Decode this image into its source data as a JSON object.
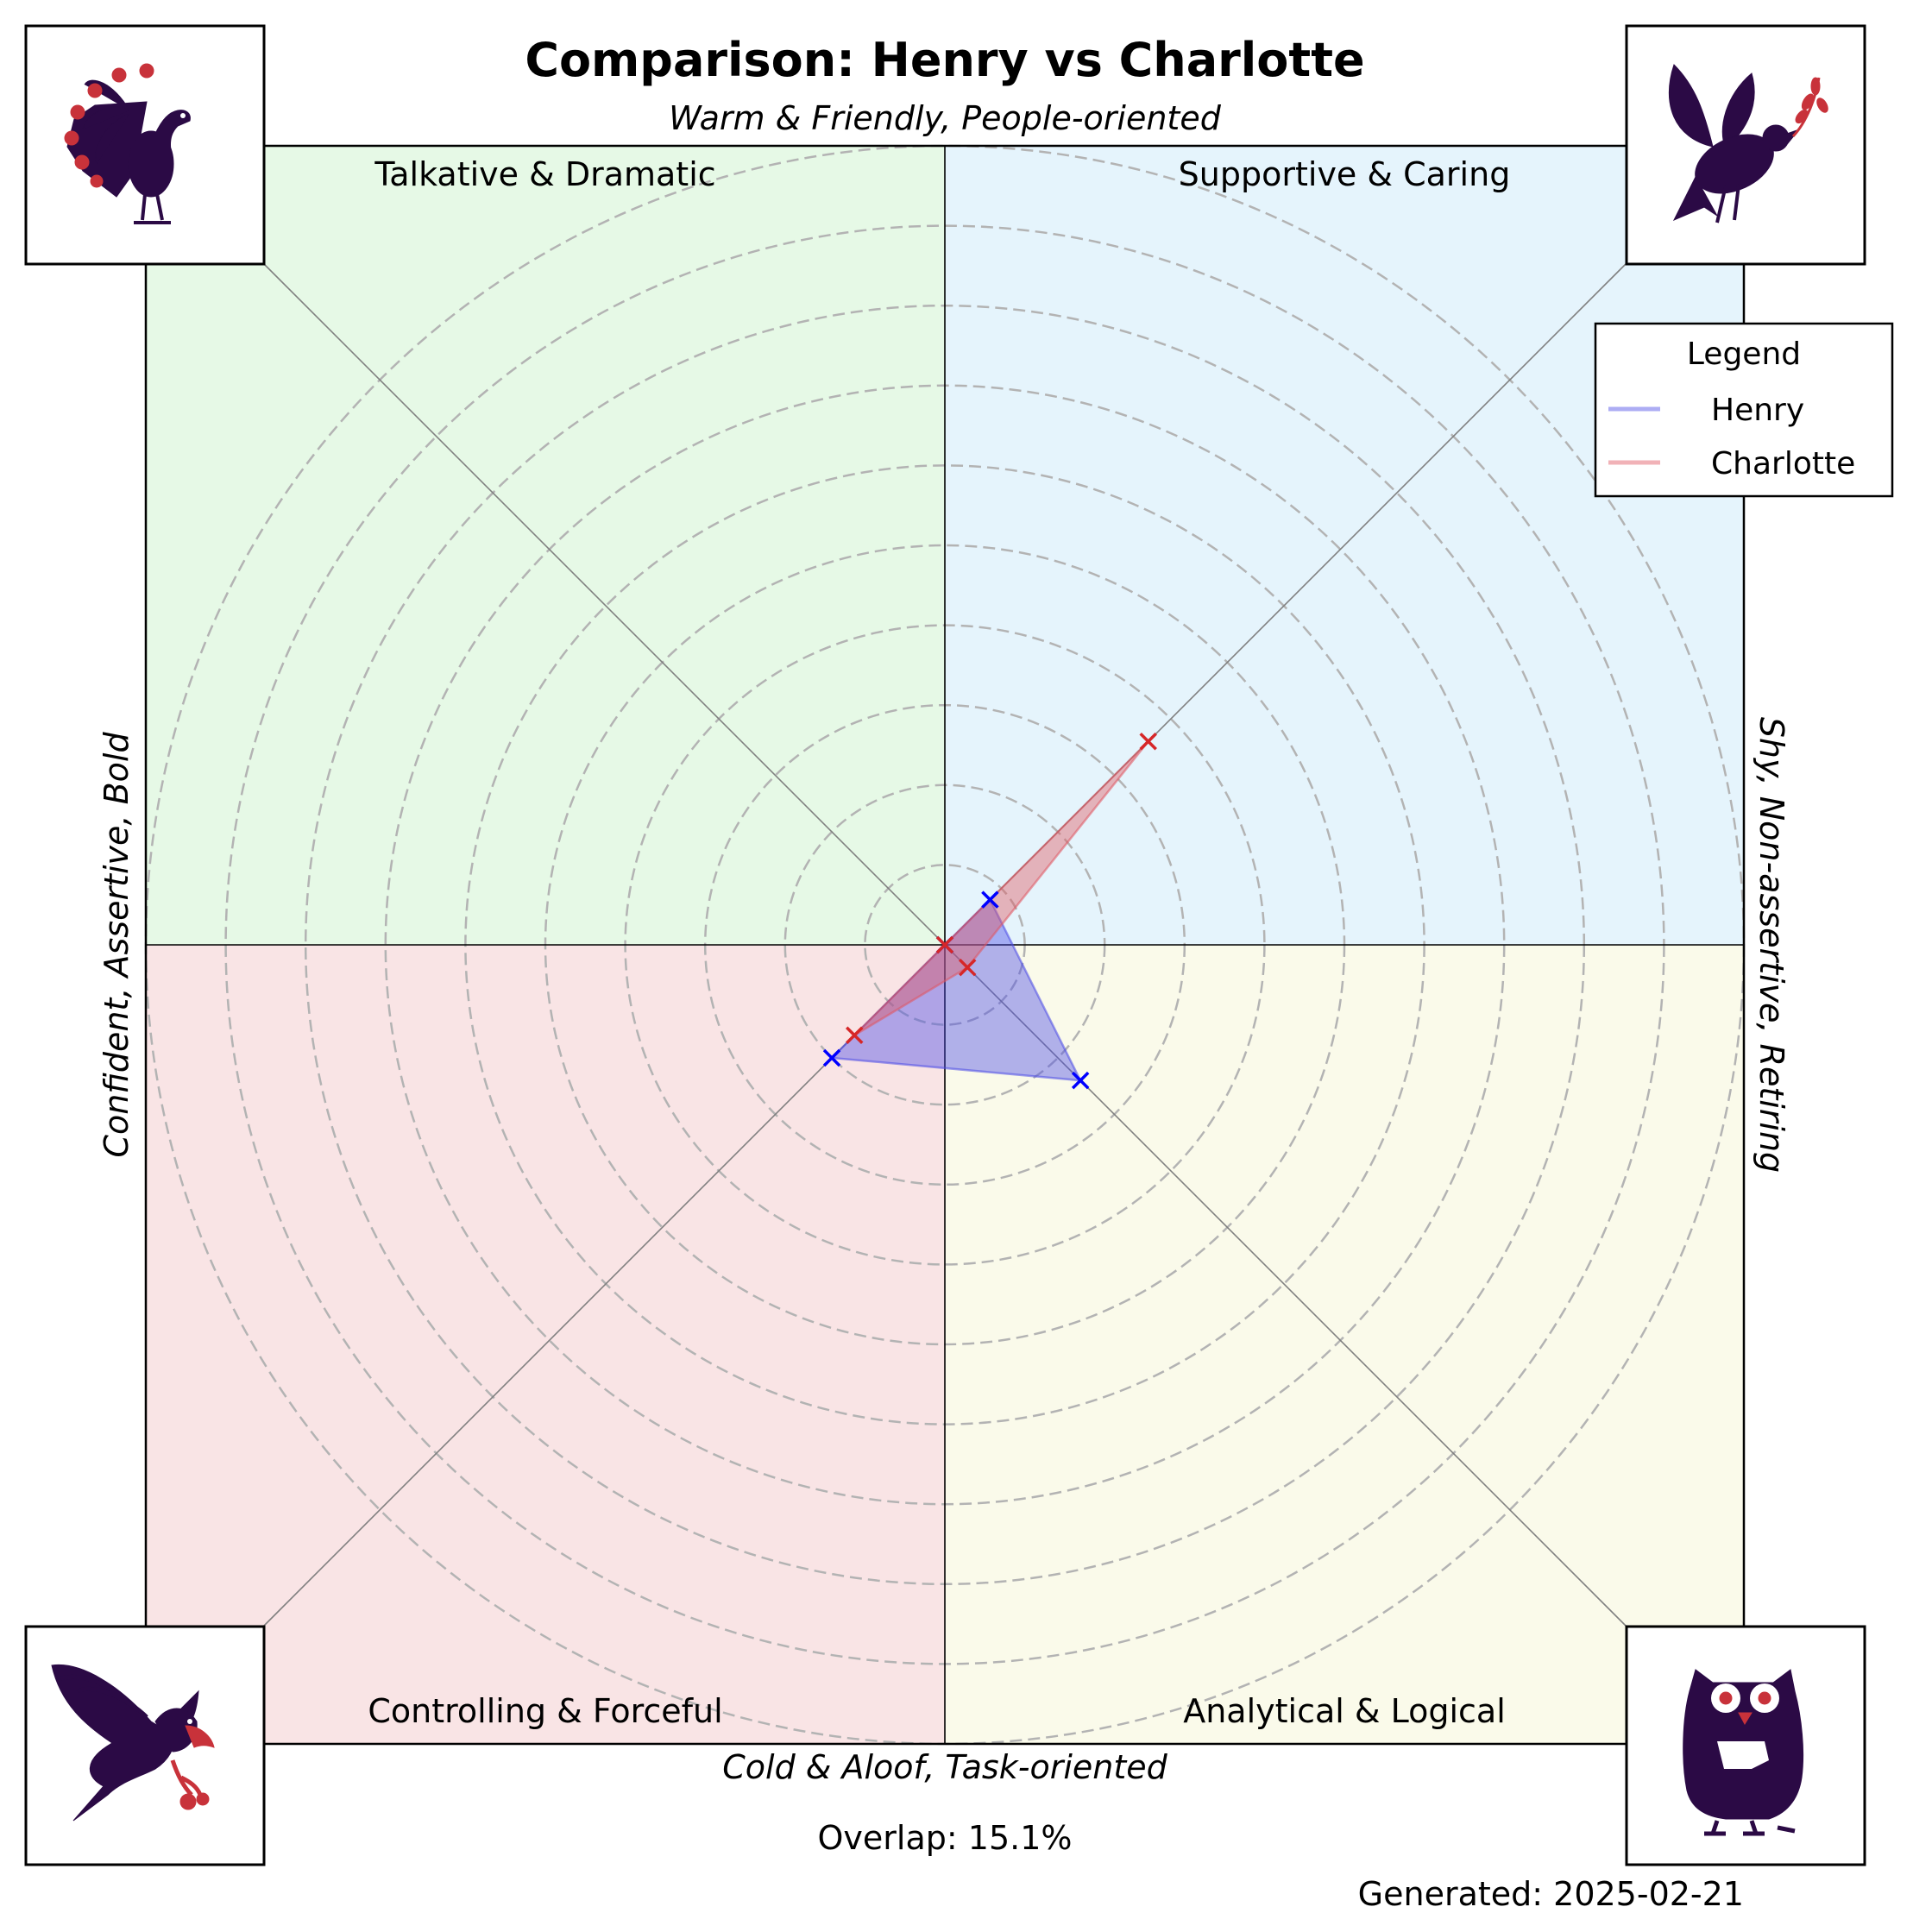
{
  "title": "Comparison: Henry vs Charlotte",
  "axis_labels": {
    "top": "Warm & Friendly, People-oriented",
    "bottom": "Cold & Aloof, Task-oriented",
    "left": "Confident, Assertive, Bold",
    "right": "Shy, Non-assertive, Retiring"
  },
  "quadrants": {
    "top_left": "Talkative & Dramatic",
    "top_right": "Supportive & Caring",
    "bottom_left": "Controlling & Forceful",
    "bottom_right": "Analytical & Logical"
  },
  "icons": {
    "top_left": "peacock-icon",
    "top_right": "dove-icon",
    "bottom_left": "eagle-icon",
    "bottom_right": "owl-icon"
  },
  "overlap_text": "Overlap: 15.1%",
  "generated_text": "Generated: 2025-02-21",
  "legend": {
    "title": "Legend",
    "entries": [
      "Henry",
      "Charlotte"
    ]
  },
  "colors": {
    "henry": "#0000ff",
    "charlotte": "#d62728",
    "henry_fill": "#4a4ae6",
    "charlotte_fill": "#e05560",
    "q_top_left": "#e6f9e6",
    "q_top_right": "#e5f4fc",
    "q_bottom_left": "#f9e4e5",
    "q_bottom_right": "#fafaea",
    "icon_dark": "#2b0a45",
    "icon_accent": "#c8323a"
  },
  "chart_data": {
    "type": "radar",
    "axes": [
      "Supportive & Caring",
      "Talkative & Dramatic",
      "Controlling & Forceful",
      "Analytical & Logical"
    ],
    "rings": [
      1,
      2,
      3,
      4,
      5,
      6,
      7,
      8,
      9,
      10
    ],
    "rmax": 10,
    "series": [
      {
        "name": "Henry",
        "values": [
          0.8,
          0,
          2.0,
          2.4
        ]
      },
      {
        "name": "Charlotte",
        "values": [
          3.6,
          0,
          1.6,
          0.4
        ]
      }
    ],
    "grid": true,
    "legend_position": "top-right"
  }
}
